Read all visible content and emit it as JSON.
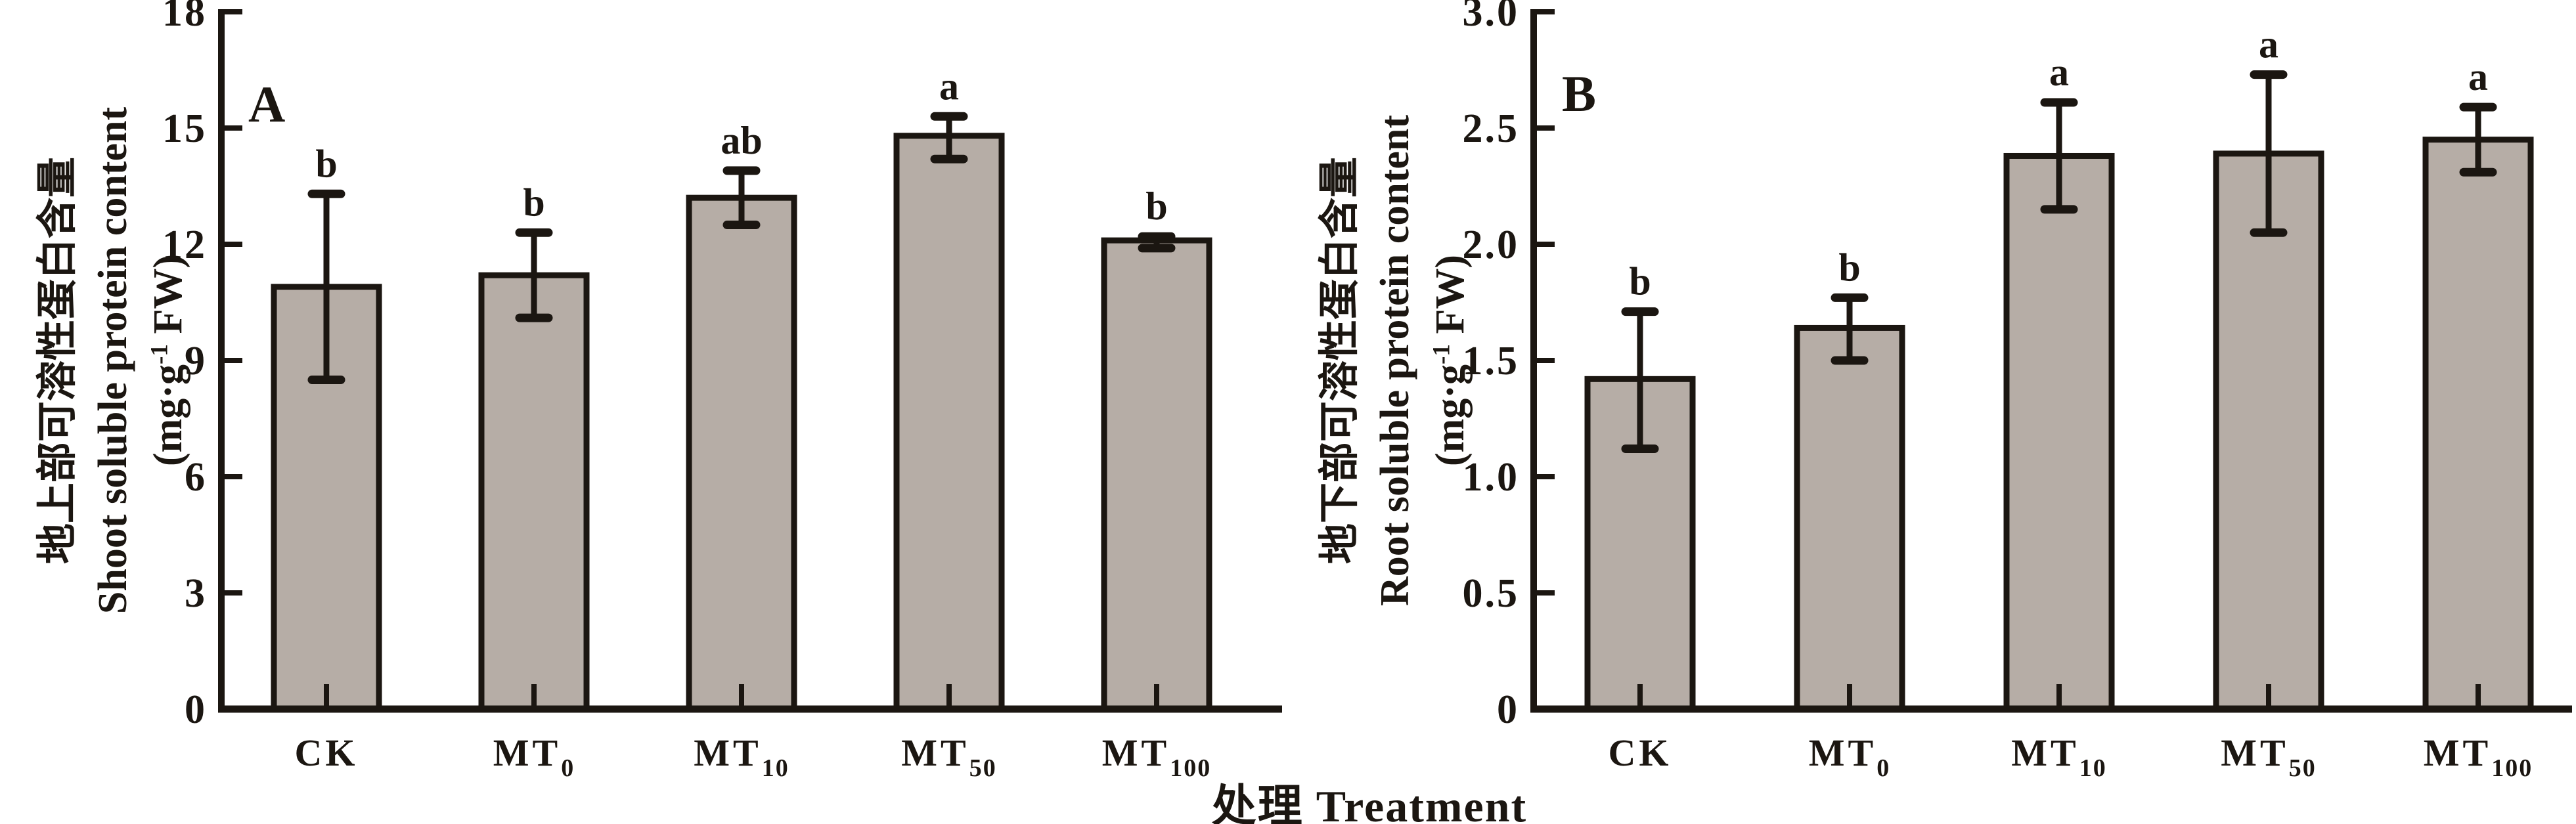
{
  "figure": {
    "xlabel": "处理 Treatment",
    "background": "#ffffff"
  },
  "style": {
    "bar_fill": "#b6ada6",
    "line_color": "#1b1611",
    "text_color": "#1b1611"
  },
  "chart_data": [
    {
      "type": "bar",
      "panel_label": "A",
      "ylabel_cn": "地上部可溶性蛋白含量",
      "ylabel_en": "Shoot soluble protein content",
      "unit_prefix": "(mg·g",
      "unit_sup": "-1",
      "unit_suffix": " FW)",
      "xlabel": "处理 Treatment",
      "ylim": [
        0,
        18
      ],
      "ytick_step": 3,
      "ytick_labels": [
        "0",
        "3",
        "6",
        "9",
        "12",
        "15",
        "18"
      ],
      "categories": [
        {
          "base": "CK",
          "sub": ""
        },
        {
          "base": "MT",
          "sub": "0"
        },
        {
          "base": "MT",
          "sub": "10"
        },
        {
          "base": "MT",
          "sub": "50"
        },
        {
          "base": "MT",
          "sub": "100"
        }
      ],
      "values": [
        10.9,
        11.2,
        13.2,
        14.8,
        12.1
      ],
      "err_low": [
        8.5,
        10.1,
        12.5,
        14.2,
        11.9
      ],
      "err_high": [
        13.3,
        12.3,
        13.9,
        15.3,
        12.2
      ],
      "sig_letters": [
        "b",
        "b",
        "ab",
        "a",
        "b"
      ],
      "grid": "off",
      "legend_position": "none"
    },
    {
      "type": "bar",
      "panel_label": "B",
      "ylabel_cn": "地下部可溶性蛋白含量",
      "ylabel_en": "Root soluble protein content",
      "unit_prefix": "(mg·g",
      "unit_sup": "-1",
      "unit_suffix": " FW)",
      "xlabel": "处理 Treatment",
      "ylim": [
        0,
        3.0
      ],
      "ytick_step": 0.5,
      "ytick_labels": [
        "0",
        "0.5",
        "1.0",
        "1.5",
        "2.0",
        "2.5",
        "3.0"
      ],
      "categories": [
        {
          "base": "CK",
          "sub": ""
        },
        {
          "base": "MT",
          "sub": "0"
        },
        {
          "base": "MT",
          "sub": "10"
        },
        {
          "base": "MT",
          "sub": "50"
        },
        {
          "base": "MT",
          "sub": "100"
        }
      ],
      "values": [
        1.42,
        1.64,
        2.38,
        2.39,
        2.45
      ],
      "err_low": [
        1.12,
        1.5,
        2.15,
        2.05,
        2.31
      ],
      "err_high": [
        1.71,
        1.77,
        2.61,
        2.73,
        2.59
      ],
      "sig_letters": [
        "b",
        "b",
        "a",
        "a",
        "a"
      ],
      "grid": "off",
      "legend_position": "none"
    }
  ]
}
